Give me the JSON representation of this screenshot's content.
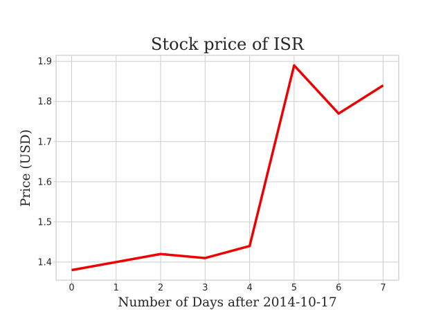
{
  "chart_data": {
    "type": "line",
    "title": "Stock price of ISR",
    "xlabel": "Number of Days after 2014-10-17",
    "ylabel": "Price (USD)",
    "x": [
      0,
      1,
      2,
      3,
      4,
      5,
      6,
      7
    ],
    "series": [
      {
        "values": [
          1.38,
          1.4,
          1.42,
          1.41,
          1.44,
          1.89,
          1.77,
          1.84
        ],
        "color": "#ee0000"
      }
    ],
    "xlim": [
      -0.35,
      7.35
    ],
    "ylim": [
      1.355,
      1.915
    ],
    "xticks": [
      "0",
      "1",
      "2",
      "3",
      "4",
      "5",
      "6",
      "7"
    ],
    "yticks": [
      "1.4",
      "1.5",
      "1.6",
      "1.7",
      "1.8",
      "1.9"
    ],
    "grid": true
  }
}
